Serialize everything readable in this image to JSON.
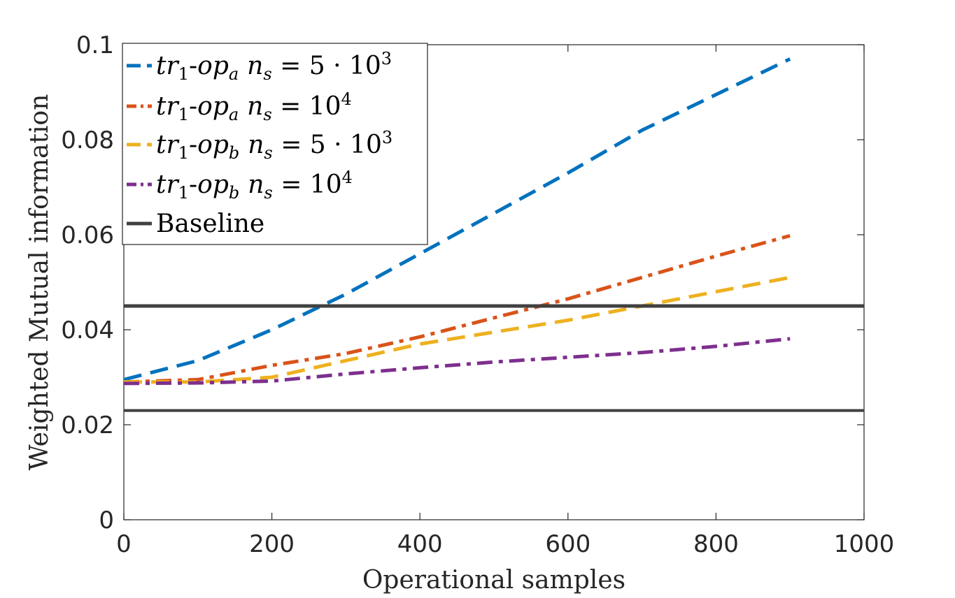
{
  "chart_data": {
    "type": "line",
    "title": "",
    "xlabel": "Operational samples",
    "ylabel": "Weighted Mutual information",
    "xlim": [
      0,
      1000
    ],
    "ylim": [
      0,
      0.1
    ],
    "xticks": [
      0,
      200,
      400,
      600,
      800,
      1000
    ],
    "xtick_labels": [
      "0",
      "200",
      "400",
      "600",
      "800",
      "1000"
    ],
    "yticks": [
      0,
      0.02,
      0.04,
      0.06,
      0.08,
      0.1
    ],
    "ytick_labels": [
      "0",
      "0.02",
      "0.04",
      "0.06",
      "0.08",
      "0.1"
    ],
    "grid": false,
    "legend_position": "top-left",
    "series": [
      {
        "name": "tr1-opa ns = 5·10^3",
        "legend": {
          "base": "tr",
          "sub1": "1",
          "hyphen": "-",
          "op": "op",
          "sub2": "a",
          "n": "n",
          "nsub": "s",
          "eq": " = 5 · 10",
          "sup": "3"
        },
        "color": "#0072BD",
        "style": "dashed",
        "x": [
          0,
          100,
          200,
          300,
          400,
          500,
          600,
          700,
          800,
          900
        ],
        "values": [
          0.0295,
          0.0335,
          0.04,
          0.0475,
          0.056,
          0.0645,
          0.073,
          0.082,
          0.0895,
          0.097
        ]
      },
      {
        "name": "tr1-opa ns = 10^4",
        "legend": {
          "base": "tr",
          "sub1": "1",
          "hyphen": "-",
          "op": "op",
          "sub2": "a",
          "n": "n",
          "nsub": "s",
          "eq": " = 10",
          "sup": "4"
        },
        "color": "#D95319",
        "style": "dashdot",
        "x": [
          0,
          100,
          200,
          300,
          400,
          500,
          600,
          700,
          800,
          900
        ],
        "values": [
          0.029,
          0.0295,
          0.0325,
          0.035,
          0.0385,
          0.0425,
          0.0465,
          0.051,
          0.0555,
          0.0598
        ]
      },
      {
        "name": "tr1-opb ns = 5·10^3",
        "legend": {
          "base": "tr",
          "sub1": "1",
          "hyphen": "-",
          "op": "op",
          "sub2": "b",
          "n": "n",
          "nsub": "s",
          "eq": " = 5 · 10",
          "sup": "3"
        },
        "color": "#EDB120",
        "style": "dashed",
        "x": [
          0,
          100,
          200,
          300,
          400,
          500,
          600,
          700,
          800,
          900
        ],
        "values": [
          0.029,
          0.029,
          0.03,
          0.0335,
          0.037,
          0.0395,
          0.042,
          0.045,
          0.048,
          0.051
        ]
      },
      {
        "name": "tr1-opb ns = 10^4",
        "legend": {
          "base": "tr",
          "sub1": "1",
          "hyphen": "-",
          "op": "op",
          "sub2": "b",
          "n": "n",
          "nsub": "s",
          "eq": " = 10",
          "sup": "4"
        },
        "color": "#7E2F8E",
        "style": "dashdot",
        "x": [
          0,
          100,
          200,
          300,
          400,
          500,
          600,
          700,
          800,
          900
        ],
        "values": [
          0.0287,
          0.0288,
          0.0292,
          0.0307,
          0.032,
          0.0332,
          0.0342,
          0.0352,
          0.0365,
          0.0381
        ]
      },
      {
        "name": "Baseline",
        "legend": {
          "plain": "Baseline"
        },
        "color": "#404040",
        "style": "solid",
        "x": [
          0,
          1000
        ],
        "values": [
          0.045,
          0.045
        ],
        "extra_lines": [
          0.023
        ]
      }
    ]
  }
}
